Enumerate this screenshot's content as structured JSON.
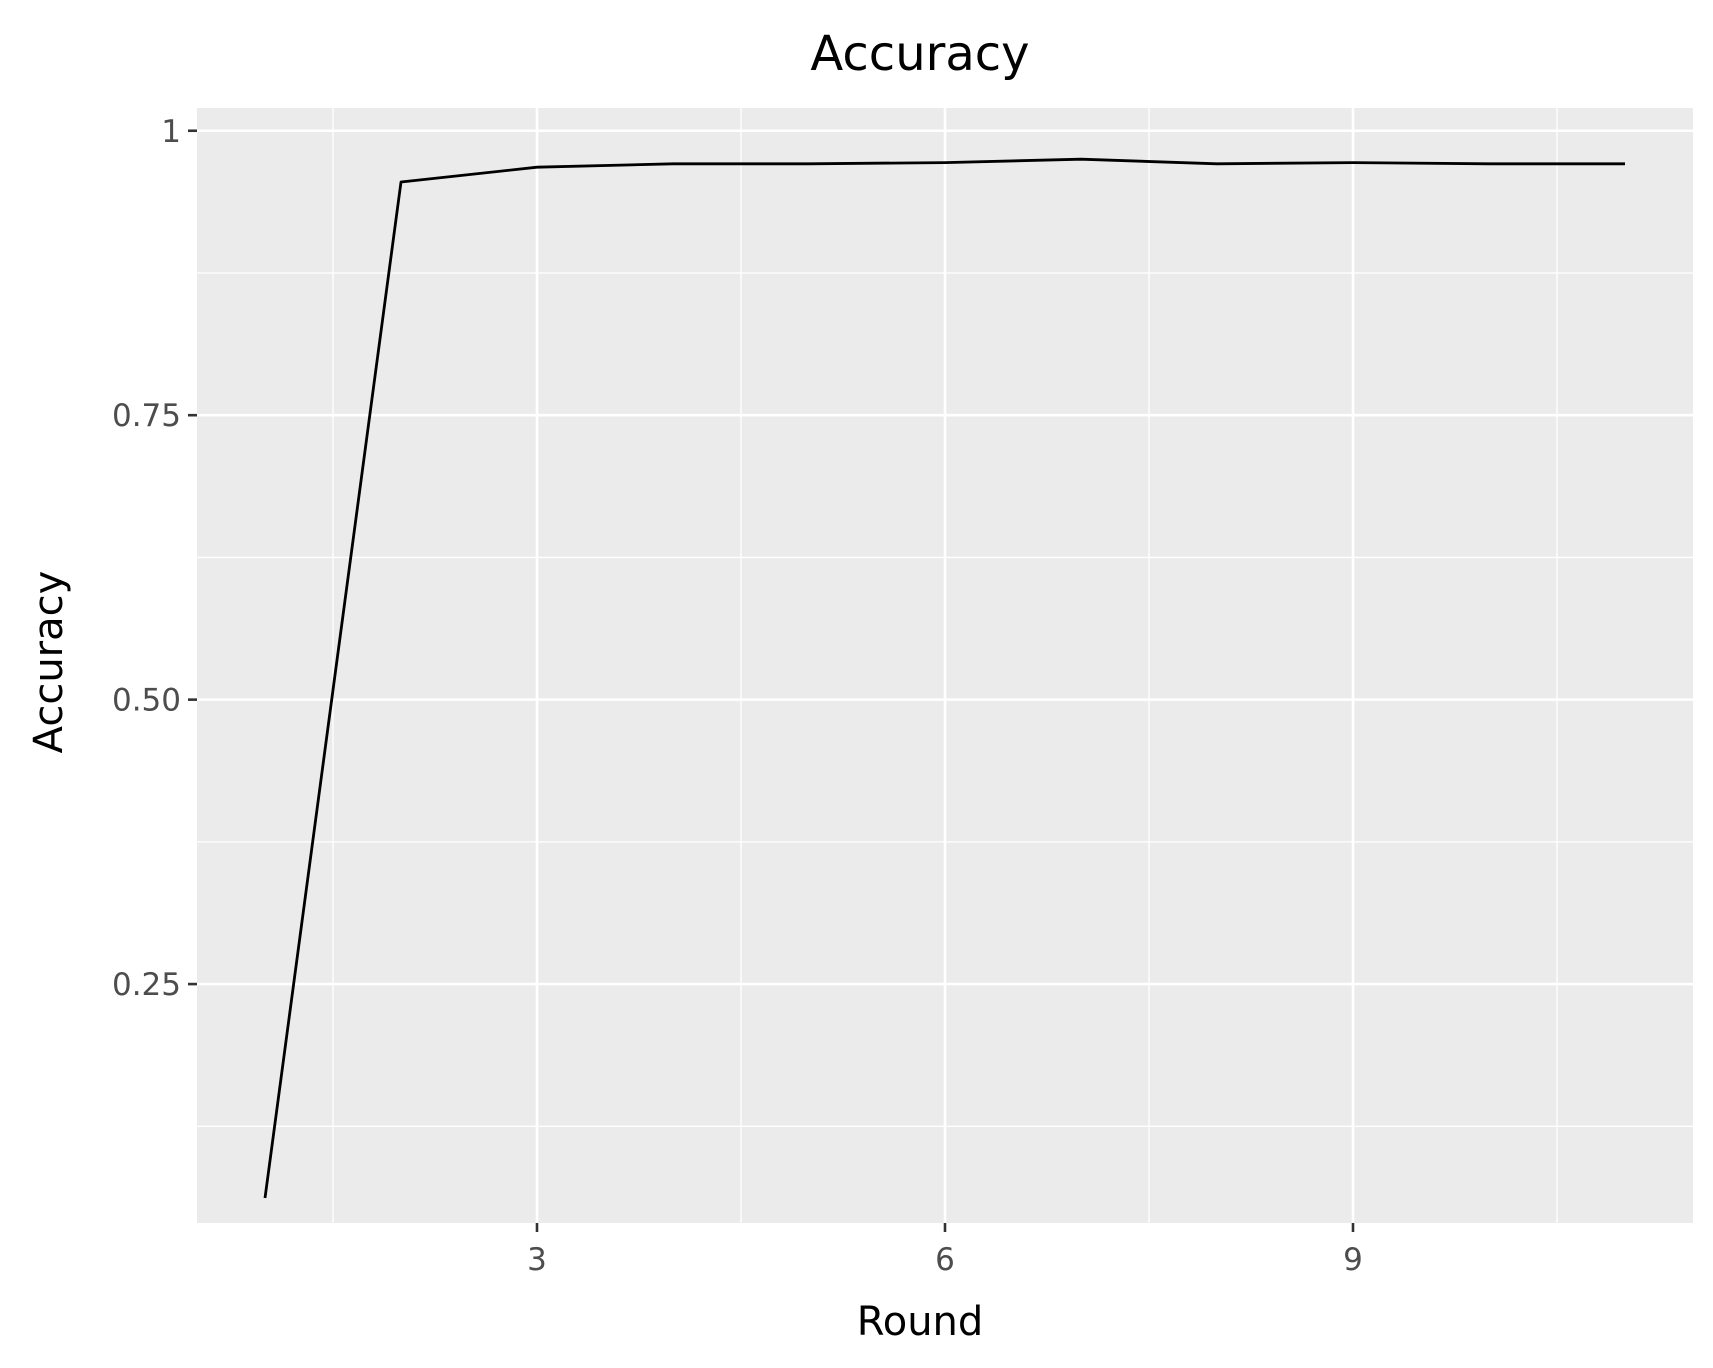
{
  "chart_data": {
    "type": "line",
    "title": "Accuracy",
    "xlabel": "Round",
    "ylabel": "Accuracy",
    "xlim": [
      0.5,
      11.5
    ],
    "ylim": [
      0.04,
      1.02
    ],
    "x_ticks": [
      3,
      6,
      9
    ],
    "x_tick_labels": [
      "3",
      "6",
      "9"
    ],
    "y_ticks": [
      0.25,
      0.5,
      0.75,
      1.0
    ],
    "y_tick_labels": [
      "0.25",
      "0.50",
      "0.75",
      "1"
    ],
    "x_minor_ticks": [
      1.5,
      4.5,
      7.5,
      10.5
    ],
    "y_minor_ticks": [
      0.125,
      0.375,
      0.625,
      0.875
    ],
    "grid": true,
    "legend": "none",
    "colors": {
      "panel": "#ebebeb",
      "grid": "#ffffff",
      "line": "#000000",
      "tick": "#333333"
    },
    "series": [
      {
        "x": [
          1,
          2,
          3,
          4,
          5,
          6,
          7,
          8,
          9,
          10,
          11
        ],
        "y": [
          0.062,
          0.955,
          0.968,
          0.971,
          0.971,
          0.972,
          0.975,
          0.971,
          0.972,
          0.971,
          0.971
        ]
      }
    ]
  }
}
